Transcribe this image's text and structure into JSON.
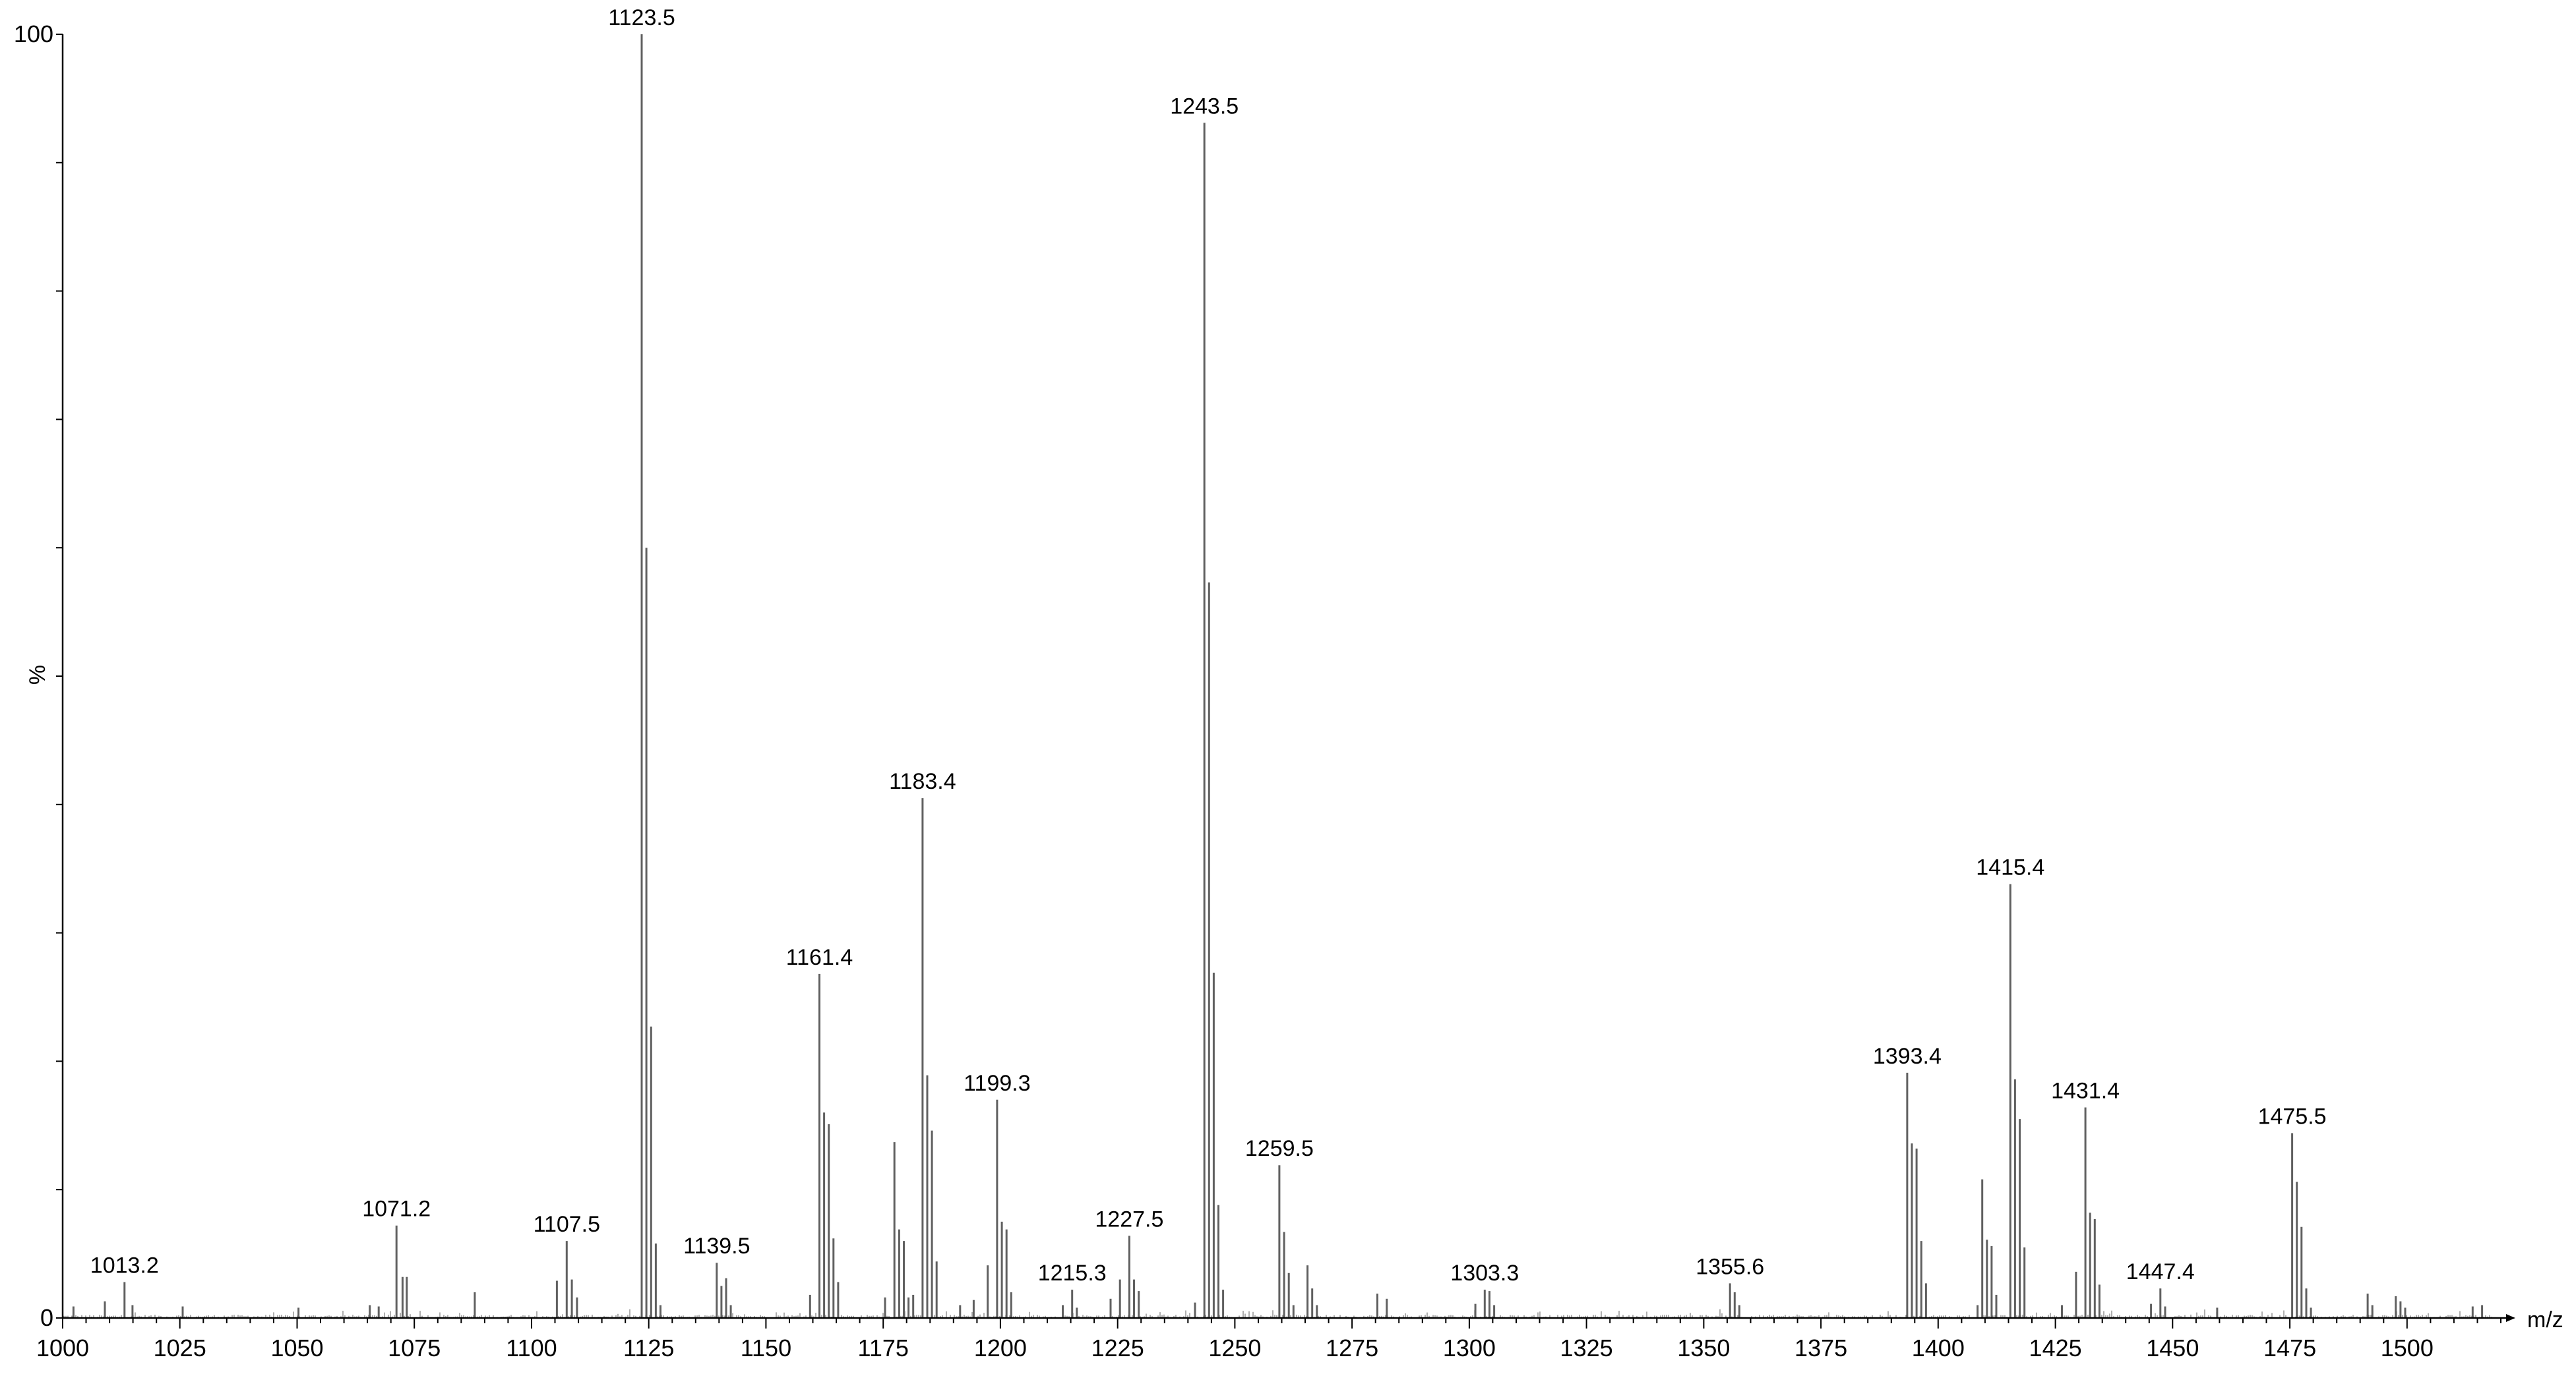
{
  "chart_data": {
    "type": "bar",
    "subtype": "mass-spectrum stick plot",
    "title": "",
    "xlabel": "m/z",
    "ylabel": "%",
    "xlim": [
      1000,
      1520
    ],
    "ylim": [
      0,
      100
    ],
    "x_ticks": [
      1000,
      1025,
      1050,
      1075,
      1100,
      1125,
      1150,
      1175,
      1200,
      1225,
      1250,
      1275,
      1300,
      1325,
      1350,
      1375,
      1400,
      1425,
      1450,
      1475,
      1500
    ],
    "y_tick_labels": [
      {
        "value": 0,
        "label": "0"
      },
      {
        "value": 100,
        "label": "100"
      }
    ],
    "y_minor_ticks": [
      0,
      10,
      20,
      30,
      40,
      50,
      60,
      70,
      80,
      90,
      100
    ],
    "grid": false,
    "legend": "none",
    "bar_color": "#606060",
    "axis_color": "#000000",
    "peaks": [
      {
        "mz": 1002.3,
        "intensity": 0.9
      },
      {
        "mz": 1009.0,
        "intensity": 1.3
      },
      {
        "mz": 1013.2,
        "intensity": 2.8,
        "label": "1013.2"
      },
      {
        "mz": 1014.9,
        "intensity": 1.0
      },
      {
        "mz": 1025.6,
        "intensity": 0.9
      },
      {
        "mz": 1050.3,
        "intensity": 0.8
      },
      {
        "mz": 1065.5,
        "intensity": 1.0
      },
      {
        "mz": 1067.4,
        "intensity": 0.9
      },
      {
        "mz": 1071.2,
        "intensity": 7.2,
        "label": "1071.2"
      },
      {
        "mz": 1072.5,
        "intensity": 3.2
      },
      {
        "mz": 1073.4,
        "intensity": 3.2
      },
      {
        "mz": 1087.9,
        "intensity": 2.0
      },
      {
        "mz": 1105.4,
        "intensity": 2.9
      },
      {
        "mz": 1107.5,
        "intensity": 6.0,
        "label": "1107.5"
      },
      {
        "mz": 1108.6,
        "intensity": 3.0
      },
      {
        "mz": 1109.7,
        "intensity": 1.6
      },
      {
        "mz": 1123.5,
        "intensity": 100,
        "label": "1123.5"
      },
      {
        "mz": 1124.5,
        "intensity": 60.0
      },
      {
        "mz": 1125.5,
        "intensity": 22.7
      },
      {
        "mz": 1126.5,
        "intensity": 5.8
      },
      {
        "mz": 1127.5,
        "intensity": 1.0
      },
      {
        "mz": 1139.5,
        "intensity": 4.3,
        "label": "1139.5"
      },
      {
        "mz": 1140.5,
        "intensity": 2.5
      },
      {
        "mz": 1141.5,
        "intensity": 3.1
      },
      {
        "mz": 1142.5,
        "intensity": 1.0
      },
      {
        "mz": 1159.4,
        "intensity": 1.8
      },
      {
        "mz": 1161.4,
        "intensity": 26.8,
        "label": "1161.4"
      },
      {
        "mz": 1162.4,
        "intensity": 16.0
      },
      {
        "mz": 1163.4,
        "intensity": 15.1
      },
      {
        "mz": 1164.4,
        "intensity": 6.2
      },
      {
        "mz": 1165.4,
        "intensity": 2.8
      },
      {
        "mz": 1175.4,
        "intensity": 1.6
      },
      {
        "mz": 1177.4,
        "intensity": 13.7
      },
      {
        "mz": 1178.4,
        "intensity": 6.9
      },
      {
        "mz": 1179.4,
        "intensity": 6.0
      },
      {
        "mz": 1180.4,
        "intensity": 1.6
      },
      {
        "mz": 1181.4,
        "intensity": 1.8
      },
      {
        "mz": 1183.4,
        "intensity": 40.5,
        "label": "1183.4"
      },
      {
        "mz": 1184.4,
        "intensity": 18.9
      },
      {
        "mz": 1185.4,
        "intensity": 14.6
      },
      {
        "mz": 1186.4,
        "intensity": 4.4
      },
      {
        "mz": 1191.4,
        "intensity": 1.0
      },
      {
        "mz": 1194.3,
        "intensity": 1.4
      },
      {
        "mz": 1197.3,
        "intensity": 4.1
      },
      {
        "mz": 1199.3,
        "intensity": 17.0,
        "label": "1199.3"
      },
      {
        "mz": 1200.3,
        "intensity": 7.5
      },
      {
        "mz": 1201.3,
        "intensity": 6.9
      },
      {
        "mz": 1202.3,
        "intensity": 2.0
      },
      {
        "mz": 1213.3,
        "intensity": 1.0
      },
      {
        "mz": 1215.3,
        "intensity": 2.2,
        "label": "1215.3"
      },
      {
        "mz": 1216.3,
        "intensity": 0.8
      },
      {
        "mz": 1223.5,
        "intensity": 1.5
      },
      {
        "mz": 1225.5,
        "intensity": 3.0
      },
      {
        "mz": 1227.5,
        "intensity": 6.4,
        "label": "1227.5"
      },
      {
        "mz": 1228.5,
        "intensity": 3.0
      },
      {
        "mz": 1229.5,
        "intensity": 2.1
      },
      {
        "mz": 1241.5,
        "intensity": 1.2
      },
      {
        "mz": 1243.5,
        "intensity": 93.1,
        "label": "1243.5"
      },
      {
        "mz": 1244.5,
        "intensity": 57.3
      },
      {
        "mz": 1245.5,
        "intensity": 26.9
      },
      {
        "mz": 1246.5,
        "intensity": 8.8
      },
      {
        "mz": 1247.5,
        "intensity": 2.2
      },
      {
        "mz": 1259.5,
        "intensity": 11.9,
        "label": "1259.5"
      },
      {
        "mz": 1260.5,
        "intensity": 6.7
      },
      {
        "mz": 1261.5,
        "intensity": 3.5
      },
      {
        "mz": 1262.5,
        "intensity": 1.0
      },
      {
        "mz": 1265.5,
        "intensity": 4.1
      },
      {
        "mz": 1266.5,
        "intensity": 2.3
      },
      {
        "mz": 1267.5,
        "intensity": 1.0
      },
      {
        "mz": 1280.4,
        "intensity": 1.9
      },
      {
        "mz": 1282.4,
        "intensity": 1.5
      },
      {
        "mz": 1301.3,
        "intensity": 1.1
      },
      {
        "mz": 1303.3,
        "intensity": 2.2,
        "label": "1303.3"
      },
      {
        "mz": 1304.3,
        "intensity": 2.1
      },
      {
        "mz": 1305.3,
        "intensity": 1.0
      },
      {
        "mz": 1355.6,
        "intensity": 2.7,
        "label": "1355.6"
      },
      {
        "mz": 1356.6,
        "intensity": 2.0
      },
      {
        "mz": 1357.6,
        "intensity": 1.0
      },
      {
        "mz": 1393.4,
        "intensity": 19.1,
        "label": "1393.4"
      },
      {
        "mz": 1394.4,
        "intensity": 13.6
      },
      {
        "mz": 1395.4,
        "intensity": 13.2
      },
      {
        "mz": 1396.4,
        "intensity": 6.0
      },
      {
        "mz": 1397.4,
        "intensity": 2.7
      },
      {
        "mz": 1408.4,
        "intensity": 1.0
      },
      {
        "mz": 1409.4,
        "intensity": 10.8
      },
      {
        "mz": 1410.4,
        "intensity": 6.1
      },
      {
        "mz": 1411.4,
        "intensity": 5.6
      },
      {
        "mz": 1412.4,
        "intensity": 1.8
      },
      {
        "mz": 1415.4,
        "intensity": 33.8,
        "label": "1415.4"
      },
      {
        "mz": 1416.4,
        "intensity": 18.6
      },
      {
        "mz": 1417.4,
        "intensity": 15.5
      },
      {
        "mz": 1418.4,
        "intensity": 5.5
      },
      {
        "mz": 1426.4,
        "intensity": 1.0
      },
      {
        "mz": 1429.4,
        "intensity": 3.6
      },
      {
        "mz": 1431.4,
        "intensity": 16.4,
        "label": "1431.4"
      },
      {
        "mz": 1432.4,
        "intensity": 8.2
      },
      {
        "mz": 1433.4,
        "intensity": 7.7
      },
      {
        "mz": 1434.4,
        "intensity": 2.6
      },
      {
        "mz": 1445.4,
        "intensity": 1.1
      },
      {
        "mz": 1447.4,
        "intensity": 2.3,
        "label": "1447.4"
      },
      {
        "mz": 1448.4,
        "intensity": 0.9
      },
      {
        "mz": 1459.5,
        "intensity": 0.8
      },
      {
        "mz": 1475.5,
        "intensity": 14.4,
        "label": "1475.5"
      },
      {
        "mz": 1476.5,
        "intensity": 10.6
      },
      {
        "mz": 1477.5,
        "intensity": 7.1
      },
      {
        "mz": 1478.5,
        "intensity": 2.3
      },
      {
        "mz": 1479.5,
        "intensity": 0.8
      },
      {
        "mz": 1491.6,
        "intensity": 1.9
      },
      {
        "mz": 1492.6,
        "intensity": 1.0
      },
      {
        "mz": 1497.6,
        "intensity": 1.7
      },
      {
        "mz": 1498.6,
        "intensity": 1.3
      },
      {
        "mz": 1499.6,
        "intensity": 0.8
      },
      {
        "mz": 1514.0,
        "intensity": 0.9
      },
      {
        "mz": 1516.0,
        "intensity": 1.0
      }
    ]
  }
}
